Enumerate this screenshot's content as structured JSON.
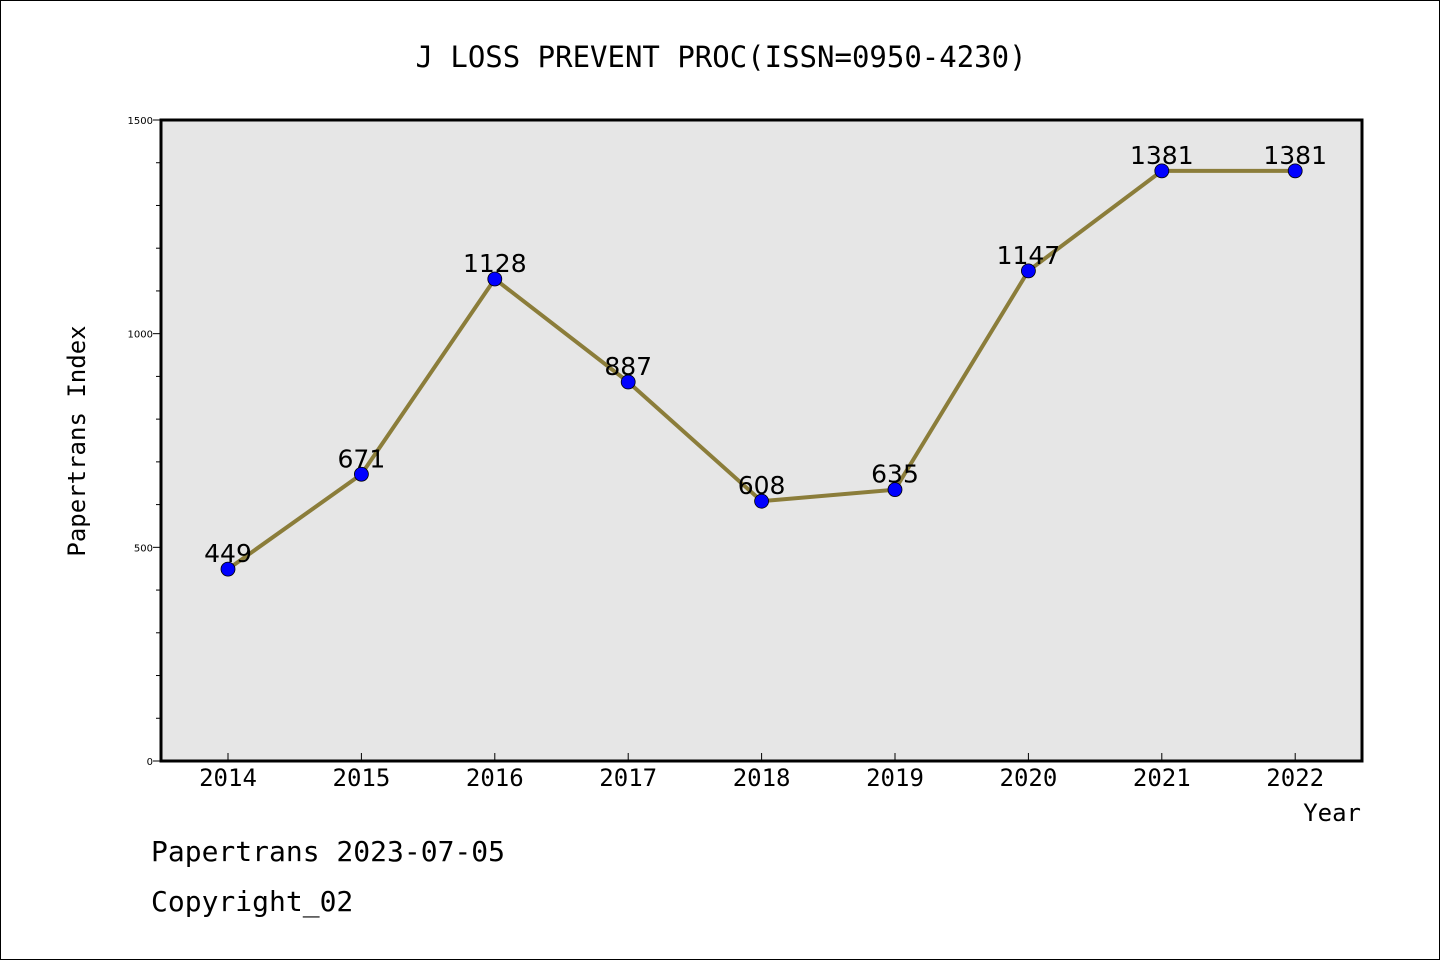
{
  "chart_data": {
    "type": "line",
    "title": "J LOSS PREVENT PROC(ISSN=0950-4230)",
    "xlabel": "Year",
    "ylabel": "Papertrans Index",
    "categories": [
      "2014",
      "2015",
      "2016",
      "2017",
      "2018",
      "2019",
      "2020",
      "2021",
      "2022"
    ],
    "series": [
      {
        "values": [
          449,
          671,
          1128,
          887,
          608,
          635,
          1147,
          1381,
          1381
        ],
        "line_color": "#8b7d3a",
        "marker_color": "#0000ff"
      }
    ],
    "data_labels": [
      "449",
      "671",
      "1128",
      "887",
      "608",
      "635",
      "1147",
      "1381",
      "1381"
    ],
    "ylim": [
      0,
      1500
    ],
    "y_major_ticks": [
      "0",
      "500",
      "1000",
      "1500"
    ],
    "y_major_tick_values": [
      0,
      500,
      1000,
      1500
    ],
    "y_minor_step": 100,
    "plot_background": "#e6e6e6",
    "grid": false,
    "legend": "none"
  },
  "footer": {
    "line1": "Papertrans 2023-07-05",
    "line2": "Copyright_02"
  }
}
